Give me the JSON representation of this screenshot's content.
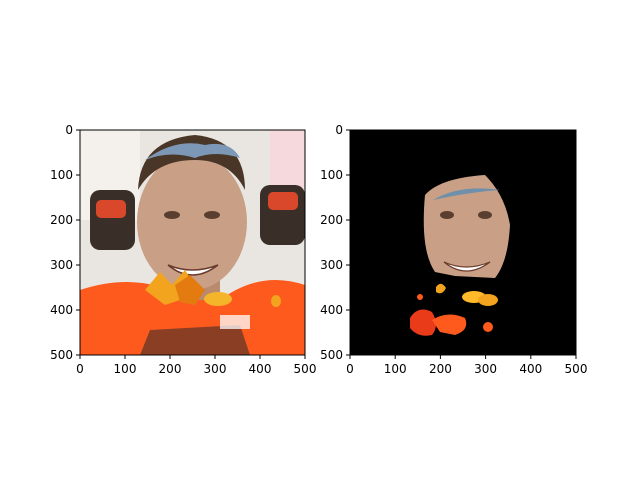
{
  "figure": {
    "background": "#ffffff",
    "axis_color": "#000000",
    "panels": [
      {
        "name": "original",
        "content": "photo of a smiling cyclist in an orange jersey with sunglasses on his head, autumn leaves near his chin",
        "x_ticks": [
          "0",
          "100",
          "200",
          "300",
          "400",
          "500"
        ],
        "y_ticks": [
          "0",
          "100",
          "200",
          "300",
          "400",
          "500"
        ]
      },
      {
        "name": "segmentation-mask",
        "content": "same photo masked to black except the face region and some orange fragments below it",
        "background": "#000000",
        "x_ticks": [
          "0",
          "100",
          "200",
          "300",
          "400",
          "500"
        ],
        "y_ticks": [
          "0",
          "100",
          "200",
          "300",
          "400",
          "500"
        ]
      }
    ],
    "colors": {
      "jersey": "#ff5a1e",
      "skin": "#c9a085",
      "leaf": "#f2a41e",
      "mask_bg": "#000000"
    }
  }
}
